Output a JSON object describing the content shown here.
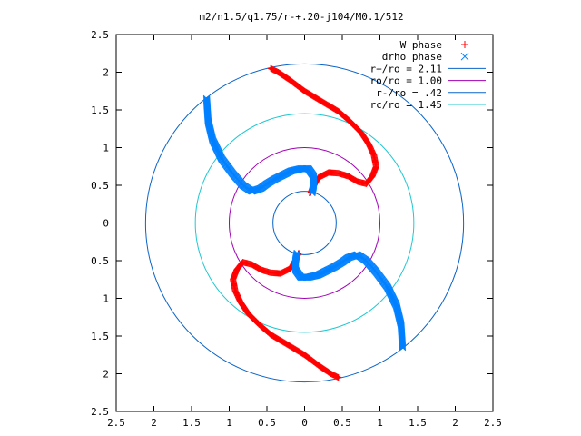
{
  "chart_data": {
    "type": "scatter",
    "title": "m2/n1.5/q1.75/r-+.20-j104/M0.1/512",
    "x_ticks": [
      "2.5",
      "2",
      "1.5",
      "1",
      "0.5",
      "0",
      "0.5",
      "1",
      "1.5",
      "2",
      "2.5"
    ],
    "y_ticks": [
      "2.5",
      "2",
      "1.5",
      "1",
      "0.5",
      "0",
      "0.5",
      "1",
      "1.5",
      "2",
      "2.5"
    ],
    "xlim": [
      -2.5,
      2.5
    ],
    "ylim": [
      -2.5,
      2.5
    ],
    "grid": false,
    "legend_position": "top-right",
    "series": [
      {
        "name": "W phase",
        "marker": "plus",
        "color": "#ff0000",
        "arm_1": [
          [
            -0.45,
            2.05
          ],
          [
            -0.35,
            2.0
          ],
          [
            -0.2,
            1.9
          ],
          [
            0.0,
            1.75
          ],
          [
            0.25,
            1.6
          ],
          [
            0.45,
            1.48
          ],
          [
            0.6,
            1.35
          ],
          [
            0.75,
            1.2
          ],
          [
            0.85,
            1.05
          ],
          [
            0.92,
            0.9
          ],
          [
            0.95,
            0.75
          ],
          [
            0.9,
            0.62
          ],
          [
            0.82,
            0.52
          ],
          [
            0.7,
            0.55
          ],
          [
            0.58,
            0.62
          ],
          [
            0.45,
            0.66
          ],
          [
            0.32,
            0.67
          ],
          [
            0.18,
            0.6
          ],
          [
            0.1,
            0.45
          ],
          [
            0.08,
            0.4
          ]
        ],
        "arm_2": [
          [
            0.45,
            -2.05
          ],
          [
            0.35,
            -2.0
          ],
          [
            0.2,
            -1.9
          ],
          [
            0.0,
            -1.75
          ],
          [
            -0.25,
            -1.6
          ],
          [
            -0.45,
            -1.48
          ],
          [
            -0.6,
            -1.35
          ],
          [
            -0.75,
            -1.2
          ],
          [
            -0.85,
            -1.05
          ],
          [
            -0.92,
            -0.9
          ],
          [
            -0.95,
            -0.75
          ],
          [
            -0.9,
            -0.62
          ],
          [
            -0.82,
            -0.52
          ],
          [
            -0.7,
            -0.55
          ],
          [
            -0.58,
            -0.62
          ],
          [
            -0.45,
            -0.66
          ],
          [
            -0.32,
            -0.67
          ],
          [
            -0.18,
            -0.6
          ],
          [
            -0.1,
            -0.45
          ],
          [
            -0.08,
            -0.4
          ]
        ]
      },
      {
        "name": "drho phase",
        "marker": "x",
        "color": "#0080ff",
        "arm_1": [
          [
            -1.3,
            1.65
          ],
          [
            -1.28,
            1.35
          ],
          [
            -1.22,
            1.1
          ],
          [
            -1.1,
            0.85
          ],
          [
            -0.95,
            0.65
          ],
          [
            -0.82,
            0.5
          ],
          [
            -0.7,
            0.42
          ],
          [
            -0.58,
            0.46
          ],
          [
            -0.5,
            0.52
          ],
          [
            -0.4,
            0.58
          ],
          [
            -0.3,
            0.63
          ],
          [
            -0.18,
            0.69
          ],
          [
            -0.05,
            0.72
          ],
          [
            0.05,
            0.72
          ],
          [
            0.12,
            0.62
          ],
          [
            0.12,
            0.5
          ],
          [
            0.1,
            0.4
          ]
        ],
        "arm_2": [
          [
            1.3,
            -1.65
          ],
          [
            1.28,
            -1.35
          ],
          [
            1.22,
            -1.1
          ],
          [
            1.1,
            -0.85
          ],
          [
            0.95,
            -0.65
          ],
          [
            0.82,
            -0.5
          ],
          [
            0.7,
            -0.42
          ],
          [
            0.58,
            -0.46
          ],
          [
            0.5,
            -0.52
          ],
          [
            0.4,
            -0.58
          ],
          [
            0.3,
            -0.63
          ],
          [
            0.18,
            -0.69
          ],
          [
            0.05,
            -0.72
          ],
          [
            -0.05,
            -0.72
          ],
          [
            -0.12,
            -0.62
          ],
          [
            -0.12,
            -0.5
          ],
          [
            -0.1,
            -0.4
          ]
        ]
      }
    ],
    "circles": [
      {
        "name": "r+/ro = 2.11",
        "radius": 2.11,
        "color": "#0a64c8"
      },
      {
        "name": "ro/ro = 1.00",
        "radius": 1.0,
        "color": "#a000b4"
      },
      {
        "name": "r-/ro = .42",
        "radius": 0.42,
        "color": "#0a64c8"
      },
      {
        "name": "rc/ro = 1.45",
        "radius": 1.45,
        "color": "#20c8d2"
      }
    ]
  }
}
